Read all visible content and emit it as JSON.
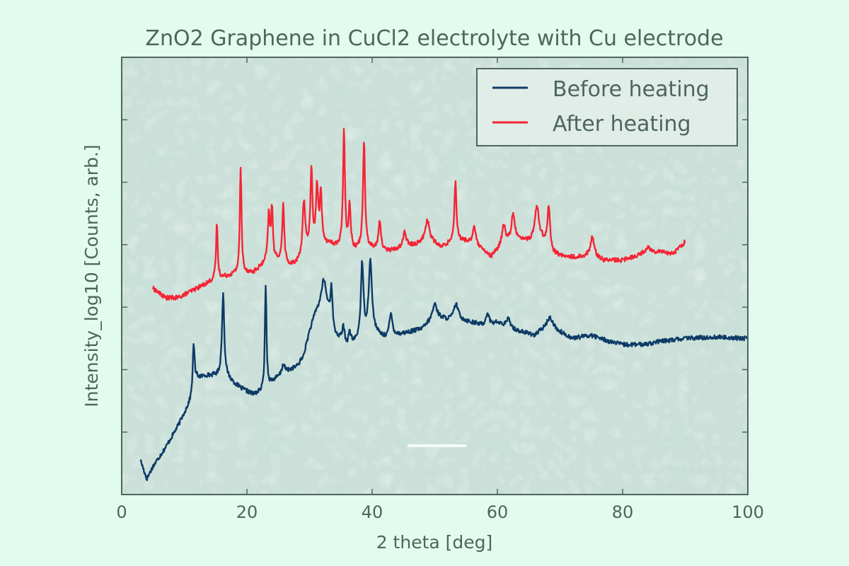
{
  "chart_data": {
    "type": "line",
    "title": "ZnO2 Graphene in CuCl2 electrolyte with Cu electrode",
    "xlabel": "2 theta [deg]",
    "ylabel": "Intensity_log10 [Counts, arb.]",
    "xlim": [
      0,
      100
    ],
    "ylim": [
      0,
      7
    ],
    "x_ticks": [
      0,
      20,
      40,
      60,
      80,
      100
    ],
    "y_tick_labels_shown": false,
    "y_ticks": [
      1,
      2,
      3,
      4,
      5,
      6
    ],
    "grid": false,
    "legend_position": "top-right",
    "background": "SEM micrograph of crystalline material with a scale bar",
    "series": [
      {
        "name": "Before heating",
        "color": "#0d3b66",
        "x_range": [
          3,
          100
        ],
        "baseline": [
          [
            3,
            0.55
          ],
          [
            4,
            0.25
          ],
          [
            5,
            0.45
          ],
          [
            7,
            0.75
          ],
          [
            9,
            1.1
          ],
          [
            11,
            1.5
          ],
          [
            12,
            1.85
          ],
          [
            13.5,
            1.9
          ],
          [
            15,
            1.9
          ],
          [
            17,
            1.85
          ],
          [
            19,
            1.7
          ],
          [
            21,
            1.6
          ],
          [
            22.5,
            1.65
          ],
          [
            24,
            1.8
          ],
          [
            26,
            1.95
          ],
          [
            28,
            2.05
          ],
          [
            29,
            2.2
          ],
          [
            30,
            2.6
          ],
          [
            31,
            2.9
          ],
          [
            32,
            3.0
          ],
          [
            33,
            2.9
          ],
          [
            34,
            2.55
          ],
          [
            36,
            2.35
          ],
          [
            38,
            2.45
          ],
          [
            40,
            2.6
          ],
          [
            42,
            2.5
          ],
          [
            44,
            2.55
          ],
          [
            46,
            2.6
          ],
          [
            48,
            2.65
          ],
          [
            50,
            2.85
          ],
          [
            52,
            2.8
          ],
          [
            54,
            2.8
          ],
          [
            56,
            2.75
          ],
          [
            58,
            2.7
          ],
          [
            60,
            2.75
          ],
          [
            62,
            2.65
          ],
          [
            64,
            2.6
          ],
          [
            66,
            2.55
          ],
          [
            68,
            2.7
          ],
          [
            70,
            2.6
          ],
          [
            72,
            2.5
          ],
          [
            75,
            2.55
          ],
          [
            78,
            2.45
          ],
          [
            80,
            2.4
          ],
          [
            83,
            2.4
          ],
          [
            86,
            2.45
          ],
          [
            90,
            2.5
          ],
          [
            95,
            2.52
          ],
          [
            100,
            2.5
          ]
        ],
        "peaks": [
          [
            11.5,
            0.75,
            0.18
          ],
          [
            16.2,
            1.35,
            0.22
          ],
          [
            23.0,
            1.65,
            0.15
          ],
          [
            25.8,
            0.15,
            0.25
          ],
          [
            32.3,
            0.45,
            0.45
          ],
          [
            33.5,
            0.6,
            0.18
          ],
          [
            35.4,
            0.25,
            0.25
          ],
          [
            36.4,
            0.2,
            0.25
          ],
          [
            38.4,
            1.2,
            0.25
          ],
          [
            39.7,
            1.15,
            0.3
          ],
          [
            43.0,
            0.35,
            0.3
          ],
          [
            50.0,
            0.2,
            0.4
          ],
          [
            53.4,
            0.25,
            0.4
          ],
          [
            58.4,
            0.2,
            0.3
          ],
          [
            61.8,
            0.15,
            0.4
          ],
          [
            68.5,
            0.15,
            0.5
          ]
        ]
      },
      {
        "name": "After heating",
        "color": "#f62436",
        "x_range": [
          5,
          90
        ],
        "baseline": [
          [
            5,
            3.3
          ],
          [
            7,
            3.15
          ],
          [
            9,
            3.15
          ],
          [
            11,
            3.25
          ],
          [
            13,
            3.35
          ],
          [
            15,
            3.45
          ],
          [
            17,
            3.5
          ],
          [
            19,
            3.55
          ],
          [
            21,
            3.55
          ],
          [
            23,
            3.7
          ],
          [
            25,
            3.75
          ],
          [
            27,
            3.65
          ],
          [
            28,
            3.7
          ],
          [
            30,
            3.9
          ],
          [
            33,
            4.0
          ],
          [
            35,
            3.95
          ],
          [
            37,
            3.9
          ],
          [
            39,
            3.95
          ],
          [
            41,
            3.9
          ],
          [
            43,
            3.9
          ],
          [
            45,
            3.95
          ],
          [
            47,
            4.0
          ],
          [
            49,
            4.1
          ],
          [
            51,
            3.95
          ],
          [
            53,
            4.05
          ],
          [
            55,
            4.05
          ],
          [
            57,
            3.95
          ],
          [
            59,
            3.8
          ],
          [
            61,
            4.0
          ],
          [
            63,
            4.1
          ],
          [
            65,
            4.05
          ],
          [
            67,
            4.1
          ],
          [
            69,
            3.85
          ],
          [
            71,
            3.8
          ],
          [
            73,
            3.8
          ],
          [
            75,
            3.85
          ],
          [
            77,
            3.75
          ],
          [
            80,
            3.75
          ],
          [
            83,
            3.85
          ],
          [
            86,
            3.9
          ],
          [
            88,
            3.85
          ],
          [
            90,
            4.05
          ]
        ],
        "peaks": [
          [
            15.2,
            0.9,
            0.15
          ],
          [
            19.0,
            1.65,
            0.16
          ],
          [
            23.5,
            0.75,
            0.2
          ],
          [
            24.0,
            0.85,
            0.16
          ],
          [
            25.8,
            0.95,
            0.18
          ],
          [
            29.1,
            0.85,
            0.25
          ],
          [
            30.3,
            1.25,
            0.2
          ],
          [
            31.2,
            0.95,
            0.2
          ],
          [
            31.8,
            0.85,
            0.2
          ],
          [
            35.5,
            1.9,
            0.18
          ],
          [
            36.4,
            0.7,
            0.2
          ],
          [
            38.7,
            1.7,
            0.2
          ],
          [
            41.2,
            0.45,
            0.25
          ],
          [
            45.2,
            0.25,
            0.3
          ],
          [
            48.8,
            0.3,
            0.35
          ],
          [
            53.3,
            0.95,
            0.2
          ],
          [
            56.3,
            0.3,
            0.3
          ],
          [
            61.0,
            0.3,
            0.35
          ],
          [
            62.5,
            0.4,
            0.3
          ],
          [
            66.3,
            0.55,
            0.35
          ],
          [
            68.2,
            0.65,
            0.25
          ],
          [
            75.2,
            0.3,
            0.3
          ],
          [
            84.0,
            0.1,
            0.4
          ]
        ]
      }
    ]
  }
}
